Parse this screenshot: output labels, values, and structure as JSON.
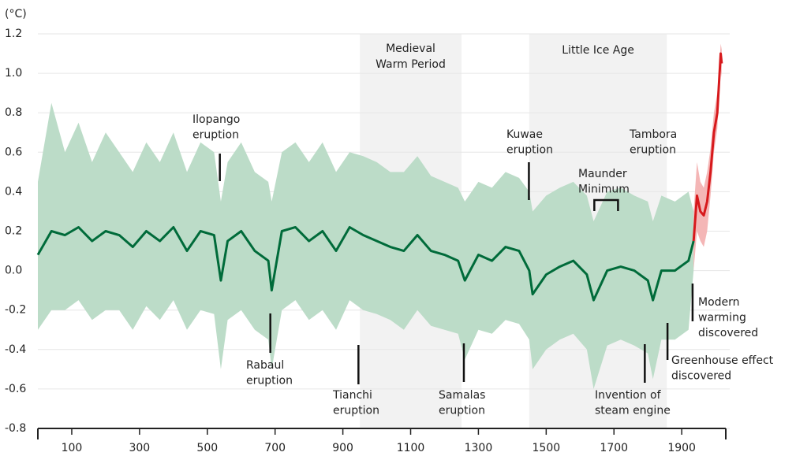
{
  "chart_data": {
    "type": "line",
    "unit_label": "(°C)",
    "xlim": [
      0,
      2030
    ],
    "ylim": [
      -0.8,
      1.2
    ],
    "xticks": [
      100,
      300,
      500,
      700,
      900,
      1100,
      1300,
      1500,
      1700,
      1900
    ],
    "yticks": [
      1.2,
      {
        "value": 1,
        "label": "1.0"
      },
      0.8,
      0.6,
      0.4,
      0.2,
      {
        "value": 0,
        "label": "0.0"
      },
      -0.2,
      -0.4,
      -0.6,
      -0.8
    ],
    "grid": true,
    "periods": [
      {
        "label": [
          "Medieval",
          "Warm Period"
        ],
        "start": 950,
        "end": 1250,
        "color": "#f2f2f2"
      },
      {
        "label": [
          "Little Ice Age"
        ],
        "start": 1450,
        "end": 1856,
        "color": "#f2f2f2"
      }
    ],
    "lines": [
      {
        "color": "#006b3a",
        "band_color": "#bcdcc8",
        "x": [
          0,
          40,
          80,
          120,
          160,
          200,
          240,
          280,
          320,
          360,
          400,
          440,
          480,
          520,
          540,
          560,
          600,
          640,
          680,
          690,
          720,
          760,
          800,
          840,
          880,
          920,
          960,
          1000,
          1040,
          1080,
          1120,
          1160,
          1200,
          1240,
          1260,
          1300,
          1340,
          1380,
          1420,
          1450,
          1460,
          1500,
          1540,
          1580,
          1620,
          1640,
          1680,
          1720,
          1760,
          1800,
          1815,
          1840,
          1880,
          1920,
          1935
        ],
        "values": [
          0.08,
          0.2,
          0.18,
          0.22,
          0.15,
          0.2,
          0.18,
          0.12,
          0.2,
          0.15,
          0.22,
          0.1,
          0.2,
          0.18,
          -0.05,
          0.15,
          0.2,
          0.1,
          0.05,
          -0.1,
          0.2,
          0.22,
          0.15,
          0.2,
          0.1,
          0.22,
          0.18,
          0.15,
          0.12,
          0.1,
          0.18,
          0.1,
          0.08,
          0.05,
          -0.05,
          0.08,
          0.05,
          0.12,
          0.1,
          0.0,
          -0.12,
          -0.02,
          0.02,
          0.05,
          -0.02,
          -0.15,
          0.0,
          0.02,
          0.0,
          -0.05,
          -0.15,
          0.0,
          0.0,
          0.05,
          0.15
        ],
        "upper": [
          0.45,
          0.85,
          0.6,
          0.75,
          0.55,
          0.7,
          0.6,
          0.5,
          0.65,
          0.55,
          0.7,
          0.5,
          0.65,
          0.6,
          0.35,
          0.55,
          0.65,
          0.5,
          0.45,
          0.35,
          0.6,
          0.65,
          0.55,
          0.65,
          0.5,
          0.6,
          0.58,
          0.55,
          0.5,
          0.5,
          0.58,
          0.48,
          0.45,
          0.42,
          0.35,
          0.45,
          0.42,
          0.5,
          0.47,
          0.4,
          0.3,
          0.38,
          0.42,
          0.45,
          0.38,
          0.25,
          0.4,
          0.42,
          0.38,
          0.35,
          0.25,
          0.38,
          0.35,
          0.4,
          0.3
        ],
        "lower": [
          -0.3,
          -0.2,
          -0.2,
          -0.15,
          -0.25,
          -0.2,
          -0.2,
          -0.3,
          -0.18,
          -0.25,
          -0.15,
          -0.3,
          -0.2,
          -0.22,
          -0.5,
          -0.25,
          -0.2,
          -0.3,
          -0.35,
          -0.5,
          -0.2,
          -0.15,
          -0.25,
          -0.2,
          -0.3,
          -0.15,
          -0.2,
          -0.22,
          -0.25,
          -0.3,
          -0.2,
          -0.28,
          -0.3,
          -0.32,
          -0.45,
          -0.3,
          -0.32,
          -0.25,
          -0.27,
          -0.35,
          -0.5,
          -0.4,
          -0.35,
          -0.32,
          -0.4,
          -0.6,
          -0.38,
          -0.35,
          -0.38,
          -0.42,
          -0.55,
          -0.35,
          -0.35,
          -0.3,
          0.0
        ]
      },
      {
        "color": "#d7191c",
        "band_color": "#f4b6b6",
        "x": [
          1935,
          1945,
          1955,
          1965,
          1975,
          1985,
          1995,
          2005,
          2010,
          2015,
          2018
        ],
        "values": [
          0.15,
          0.38,
          0.3,
          0.28,
          0.35,
          0.5,
          0.7,
          0.8,
          0.95,
          1.1,
          1.05
        ],
        "upper": [
          0.3,
          0.55,
          0.45,
          0.42,
          0.5,
          0.62,
          0.8,
          0.9,
          1.02,
          1.15,
          1.12
        ],
        "lower": [
          0.0,
          0.2,
          0.15,
          0.12,
          0.2,
          0.38,
          0.6,
          0.72,
          0.88,
          1.02,
          0.98
        ]
      }
    ],
    "events": [
      {
        "label": [
          "Ilopango",
          "eruption"
        ],
        "x": 537
      },
      {
        "label": [
          "Rabaul",
          "eruption"
        ],
        "x": 686
      },
      {
        "label": [
          "Tianchi",
          "eruption"
        ],
        "x": 946
      },
      {
        "label": [
          "Samalas",
          "eruption"
        ],
        "x": 1257
      },
      {
        "label": [
          "Kuwae",
          "eruption"
        ],
        "x": 1449
      },
      {
        "label": [
          "Maunder",
          "Minimum"
        ],
        "x": [
          1642,
          1712
        ]
      },
      {
        "label": [
          "Tambora",
          "eruption"
        ]
      },
      {
        "label": [
          "Invention of",
          "steam engine"
        ],
        "x": 1791
      },
      {
        "label": [
          "Greenhouse effect",
          "discovered"
        ],
        "x": 1858
      },
      {
        "label": [
          "Modern",
          "warming",
          "discovered"
        ],
        "x": 1932
      }
    ]
  }
}
